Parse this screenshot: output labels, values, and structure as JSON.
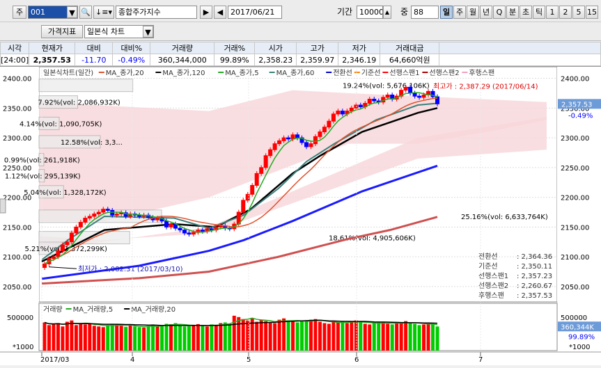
{
  "toolbar": {
    "market_tab": "주",
    "code": "001",
    "name": "종합주가지수",
    "date": "2017/06/21",
    "period_label": "기간",
    "period_value": "10000",
    "count_label": "중",
    "count_value": "88",
    "interval_buttons": [
      "일",
      "주",
      "월",
      "년",
      "Q",
      "분",
      "초",
      "틱",
      "1",
      "2",
      "5",
      "15"
    ],
    "selected_interval": "일",
    "price_indicator": "가격지표",
    "chart_kind": "일본식 차트"
  },
  "quote": {
    "headers": [
      "시각",
      "현재가",
      "대비",
      "대비%",
      "거래량",
      "거래%",
      "시가",
      "고가",
      "저가",
      "거래대금"
    ],
    "values": [
      "[24:00]",
      "2,357.53",
      "-11.70",
      "-0.49%",
      "360,344,000",
      "99.89%",
      "2,358.23",
      "2,359.97",
      "2,346.19",
      "64,660억원"
    ]
  },
  "colors": {
    "up": "#ff0000",
    "down": "#0000ff",
    "ma20": "#e0502a",
    "ma120": "#000000",
    "ma5": "#22aa22",
    "ma60": "#3a7f7a",
    "base_line": "#ff8000",
    "span1": "#f7cdd0",
    "span2": "#d05050",
    "lagging": "#f0a0c0",
    "vol_up": "#ff0000",
    "vol_down": "#00cc00"
  },
  "legend": [
    {
      "label": "일본식차트(일간)",
      "color": "#555555"
    },
    {
      "label": "MA_종가,20",
      "color": "#e0502a"
    },
    {
      "label": "MA_종가,120",
      "color": "#000000"
    },
    {
      "label": "MA_종가,5",
      "color": "#22aa22"
    },
    {
      "label": "MA_종가,60",
      "color": "#3a7f7a"
    },
    {
      "label": "전환선",
      "color": "#0000cc"
    },
    {
      "label": "기준선",
      "color": "#ff8000"
    },
    {
      "label": "선행스팬1",
      "color": "#ff0000"
    },
    {
      "label": "선행스팬2",
      "color": "#aa0000"
    },
    {
      "label": "후행스팬",
      "color": "#f0a0c0"
    }
  ],
  "vol_legend": [
    {
      "label": "거래량",
      "color": "#555555"
    },
    {
      "label": "MA_거래량,5",
      "color": "#22aa22"
    },
    {
      "label": "MA_거래량,20",
      "color": "#000000"
    }
  ],
  "chart_data": {
    "type": "candlestick",
    "y_ticks": [
      "2400.00",
      "2350.00",
      "2300.00",
      "2250.00",
      "2200.00",
      "2150.00",
      "2100.00",
      "2050.00"
    ],
    "ylim": [
      2030,
      2410
    ],
    "x_ticks": [
      "2017/03",
      "4",
      "5",
      "6",
      "7"
    ],
    "high_label": "최고가 : 2,387.29 (2017/06/14)",
    "low_label": "최저가 : 2,082.31 (2017/03/10)",
    "current_price": "2,357.53",
    "current_pct": "-0.49%",
    "volume_profile": [
      {
        "price": 2387,
        "label": "19.24%(vol: 5,676,106K)"
      },
      {
        "price": 2359,
        "label": "7.92%(vol: 2,086,932K)"
      },
      {
        "price": 2323,
        "label": "4.14%(vol: 1,090,705K)"
      },
      {
        "price": 2292,
        "label": "12.58%(vol: 3,3..."
      },
      {
        "price": 2262,
        "label": "0.99%(vol: 261,918K)"
      },
      {
        "price": 2235,
        "label": "1.12%(vol: 295,139K)"
      },
      {
        "price": 2208,
        "label": "5.04%(vol: 1,328,172K)"
      },
      {
        "price": 2167,
        "label": "25.16%(vol: 6,633,764K)"
      },
      {
        "price": 2131,
        "label": "18.61%(vol: 4,905,606K)"
      },
      {
        "price": 2113,
        "label": "5.21%(vol: 1,372,299K)"
      }
    ],
    "ichimoku_values": [
      {
        "label": "전환선",
        "value": "2,364.36"
      },
      {
        "label": "기준선",
        "value": "2,350.11"
      },
      {
        "label": "선행스팬1",
        "value": "2,357.23"
      },
      {
        "label": "선행스팬2",
        "value": "2,260.67"
      },
      {
        "label": "후행스팬",
        "value": "2,357.53"
      }
    ],
    "closes": [
      2088,
      2097,
      2100,
      2110,
      2120,
      2125,
      2140,
      2150,
      2158,
      2165,
      2168,
      2172,
      2175,
      2180,
      2178,
      2170,
      2172,
      2174,
      2168,
      2172,
      2170,
      2168,
      2170,
      2166,
      2162,
      2165,
      2160,
      2150,
      2155,
      2148,
      2145,
      2140,
      2138,
      2141,
      2145,
      2143,
      2147,
      2145,
      2150,
      2152,
      2148,
      2147,
      2155,
      2175,
      2195,
      2205,
      2220,
      2240,
      2250,
      2270,
      2280,
      2290,
      2295,
      2300,
      2298,
      2305,
      2300,
      2292,
      2285,
      2290,
      2302,
      2310,
      2318,
      2328,
      2340,
      2345,
      2340,
      2345,
      2350,
      2355,
      2352,
      2358,
      2365,
      2362,
      2360,
      2368,
      2372,
      2365,
      2370,
      2380,
      2385,
      2375,
      2370,
      2368,
      2372,
      2378,
      2369,
      2357
    ],
    "volume": {
      "y_ticks": [
        "500000",
        "*1000"
      ],
      "current": "360,344K",
      "current_pct": "99.89%",
      "values": [
        420,
        380,
        395,
        410,
        360,
        430,
        450,
        380,
        400,
        390,
        410,
        370,
        360,
        350,
        380,
        400,
        390,
        370,
        355,
        380,
        360,
        350,
        345,
        370,
        390,
        360,
        380,
        400,
        395,
        410,
        370,
        360,
        365,
        380,
        395,
        370,
        360,
        390,
        380,
        410,
        420,
        400,
        520,
        500,
        470,
        450,
        480,
        430,
        460,
        440,
        420,
        410,
        460,
        480,
        450,
        430,
        420,
        440,
        450,
        460,
        470,
        430,
        410,
        400,
        440,
        420,
        430,
        410,
        430,
        450,
        420,
        400,
        390,
        410,
        420,
        430,
        400,
        390,
        410,
        420,
        440,
        410,
        400,
        380,
        390,
        410,
        400,
        360
      ]
    }
  }
}
